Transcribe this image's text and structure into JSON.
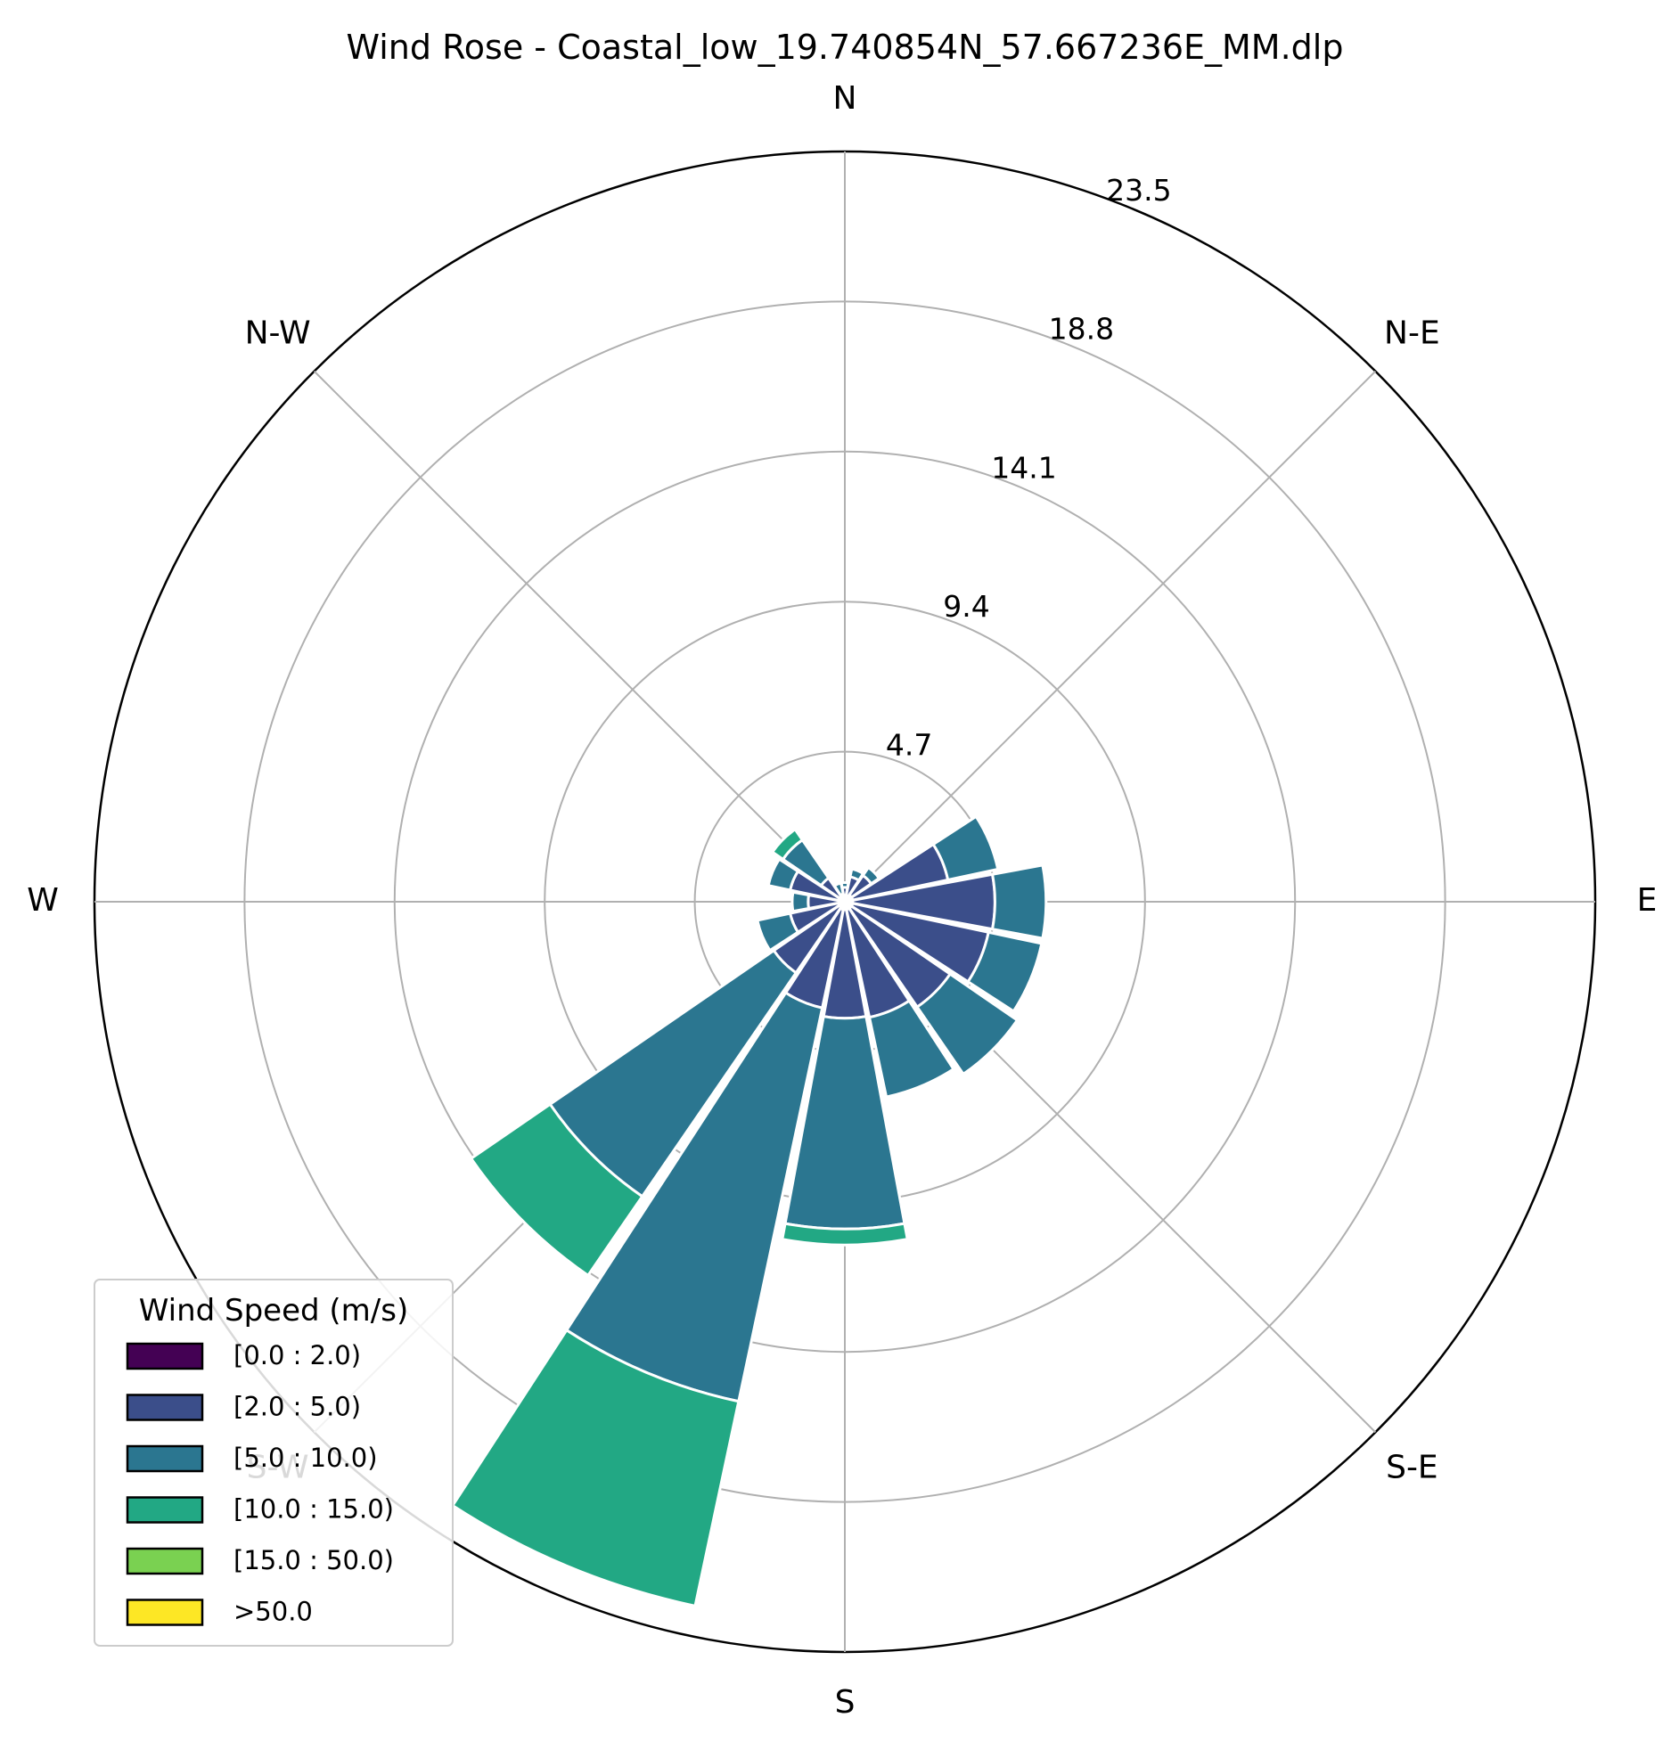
{
  "chart_data": {
    "type": "windrose",
    "title": "Wind Rose - Coastal_low_19.740854N_57.667236E_MM.dlp",
    "direction_labels": [
      "N",
      "N-E",
      "E",
      "S-E",
      "S",
      "S-W",
      "W",
      "N-W"
    ],
    "radial_ticks": [
      "4.7",
      "9.4",
      "14.1",
      "18.8",
      "23.5"
    ],
    "radial_max": 23.5,
    "sector_count": 16,
    "sector_directions_deg": [
      0,
      22.5,
      45,
      67.5,
      90,
      112.5,
      135,
      157.5,
      180,
      202.5,
      225,
      247.5,
      270,
      292.5,
      315,
      337.5
    ],
    "legend": {
      "title": "Wind Speed (m/s)",
      "placement": "lower-left",
      "entries": [
        "[0.0 : 2.0)",
        "[2.0 : 5.0)",
        "[5.0 : 10.0)",
        "[10.0 : 15.0)",
        "[15.0 : 50.0)",
        ">50.0"
      ]
    },
    "series": [
      {
        "name": "[0.0 : 2.0)",
        "color": "#440154",
        "values": [
          0.15,
          0.2,
          0.25,
          0.25,
          0.25,
          0.25,
          0.25,
          0.25,
          0.25,
          0.25,
          0.2,
          0.15,
          0.15,
          0.15,
          0.2,
          0.15
        ]
      },
      {
        "name": "[2.0 : 5.0)",
        "color": "#3b4e8a",
        "values": [
          0.3,
          0.6,
          0.75,
          3.05,
          4.45,
          4.35,
          3.75,
          3.45,
          3.4,
          3.15,
          2.5,
          1.6,
          1.0,
          1.6,
          0.7,
          0.1
        ]
      },
      {
        "name": "[5.0 : 10.0)",
        "color": "#2b7690",
        "values": [
          0.15,
          0.25,
          0.3,
          1.6,
          1.6,
          1.7,
          2.55,
          2.55,
          6.6,
          12.6,
          8.5,
          1.05,
          0.5,
          0.7,
          1.45,
          0.35
        ]
      },
      {
        "name": "[10.0 : 15.0)",
        "color": "#22a884",
        "values": [
          0.0,
          0.0,
          0.0,
          0.0,
          0.0,
          0.0,
          0.0,
          0.0,
          0.5,
          6.55,
          3.0,
          0.0,
          0.0,
          0.0,
          0.4,
          0.0
        ]
      },
      {
        "name": "[15.0 : 50.0)",
        "color": "#7ad151",
        "values": [
          0,
          0,
          0,
          0,
          0,
          0,
          0,
          0,
          0,
          0,
          0,
          0,
          0,
          0,
          0,
          0
        ]
      },
      {
        "name": ">50.0",
        "color": "#fde725",
        "values": [
          0,
          0,
          0,
          0,
          0,
          0,
          0,
          0,
          0,
          0,
          0,
          0,
          0,
          0,
          0,
          0
        ]
      }
    ]
  }
}
